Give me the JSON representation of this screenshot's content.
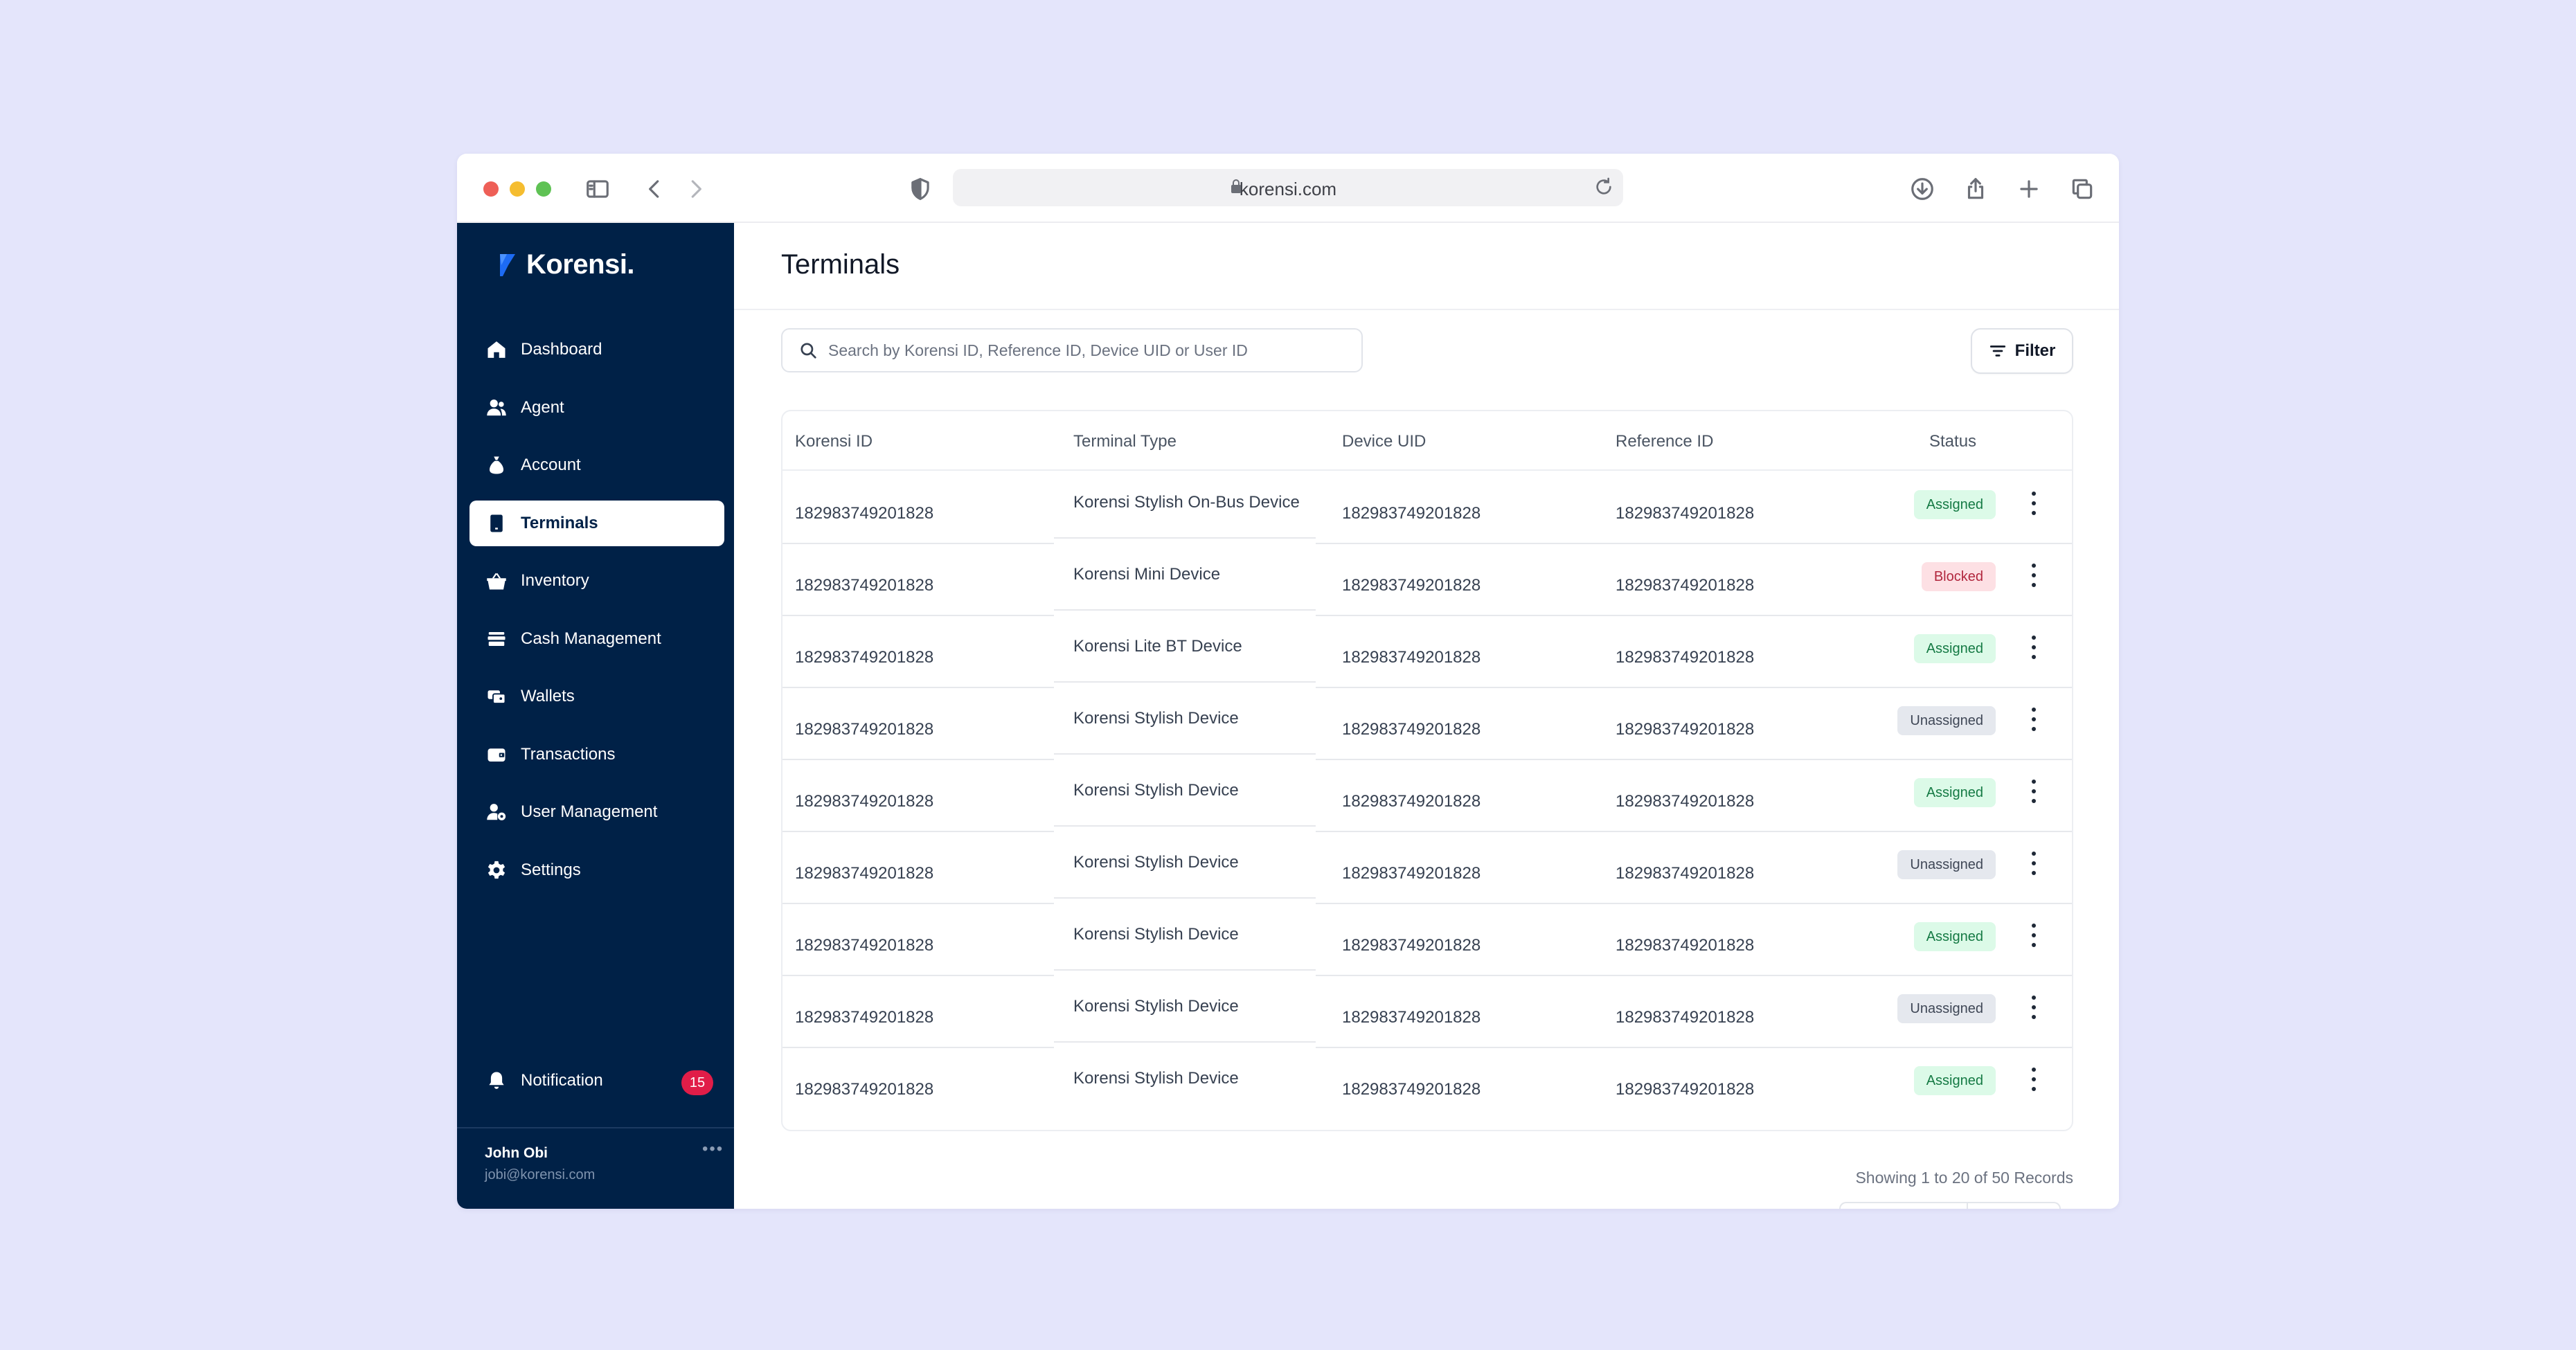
{
  "browser": {
    "url": "korensi.com"
  },
  "sidebar": {
    "brand": "Korensi.",
    "items": [
      {
        "label": "Dashboard",
        "icon": "home-icon",
        "active": false
      },
      {
        "label": "Agent",
        "icon": "users-icon",
        "active": false
      },
      {
        "label": "Account",
        "icon": "money-bag-icon",
        "active": false
      },
      {
        "label": "Terminals",
        "icon": "device-icon",
        "active": true
      },
      {
        "label": "Inventory",
        "icon": "basket-icon",
        "active": false
      },
      {
        "label": "Cash Management",
        "icon": "cash-icon",
        "active": false
      },
      {
        "label": "Wallets",
        "icon": "wallets-icon",
        "active": false
      },
      {
        "label": "Transactions",
        "icon": "wallet-card-icon",
        "active": false
      },
      {
        "label": "User Management",
        "icon": "user-settings-icon",
        "active": false
      },
      {
        "label": "Settings",
        "icon": "gear-icon",
        "active": false
      }
    ],
    "notification": {
      "label": "Notification",
      "count": "15"
    },
    "user": {
      "name": "John Obi",
      "email": "jobi@korensi.com"
    }
  },
  "main": {
    "title": "Terminals",
    "search_placeholder": "Search by Korensi ID, Reference ID, Device UID or User ID",
    "filter_label": "Filter",
    "columns": [
      "Korensi ID",
      "Terminal Type",
      "Device UID",
      "Reference ID",
      "Status"
    ],
    "rows": [
      {
        "korensi_id": "182983749201828",
        "terminal_type": "Korensi Stylish On-Bus Device",
        "device_uid": "182983749201828",
        "reference_id": "182983749201828",
        "status": "Assigned"
      },
      {
        "korensi_id": "182983749201828",
        "terminal_type": "Korensi Mini Device",
        "device_uid": "182983749201828",
        "reference_id": "182983749201828",
        "status": "Blocked"
      },
      {
        "korensi_id": "182983749201828",
        "terminal_type": "Korensi Lite BT Device",
        "device_uid": "182983749201828",
        "reference_id": "182983749201828",
        "status": "Assigned"
      },
      {
        "korensi_id": "182983749201828",
        "terminal_type": "Korensi Stylish Device",
        "device_uid": "182983749201828",
        "reference_id": "182983749201828",
        "status": "Unassigned"
      },
      {
        "korensi_id": "182983749201828",
        "terminal_type": "Korensi Stylish Device",
        "device_uid": "182983749201828",
        "reference_id": "182983749201828",
        "status": "Assigned"
      },
      {
        "korensi_id": "182983749201828",
        "terminal_type": "Korensi Stylish Device",
        "device_uid": "182983749201828",
        "reference_id": "182983749201828",
        "status": "Unassigned"
      },
      {
        "korensi_id": "182983749201828",
        "terminal_type": "Korensi Stylish Device",
        "device_uid": "182983749201828",
        "reference_id": "182983749201828",
        "status": "Assigned"
      },
      {
        "korensi_id": "182983749201828",
        "terminal_type": "Korensi Stylish Device",
        "device_uid": "182983749201828",
        "reference_id": "182983749201828",
        "status": "Unassigned"
      },
      {
        "korensi_id": "182983749201828",
        "terminal_type": "Korensi Stylish Device",
        "device_uid": "182983749201828",
        "reference_id": "182983749201828",
        "status": "Assigned"
      }
    ],
    "records_text": "Showing 1 to 20 of 50 Records"
  },
  "colors": {
    "sidebar_bg": "#002147",
    "page_bg": "#e4e5fb",
    "brand_accent": "#1d6bf3",
    "assigned": "#dcfae8",
    "blocked": "#fde0e4",
    "unassigned": "#e5e8ee",
    "notification_badge": "#e11d48"
  }
}
